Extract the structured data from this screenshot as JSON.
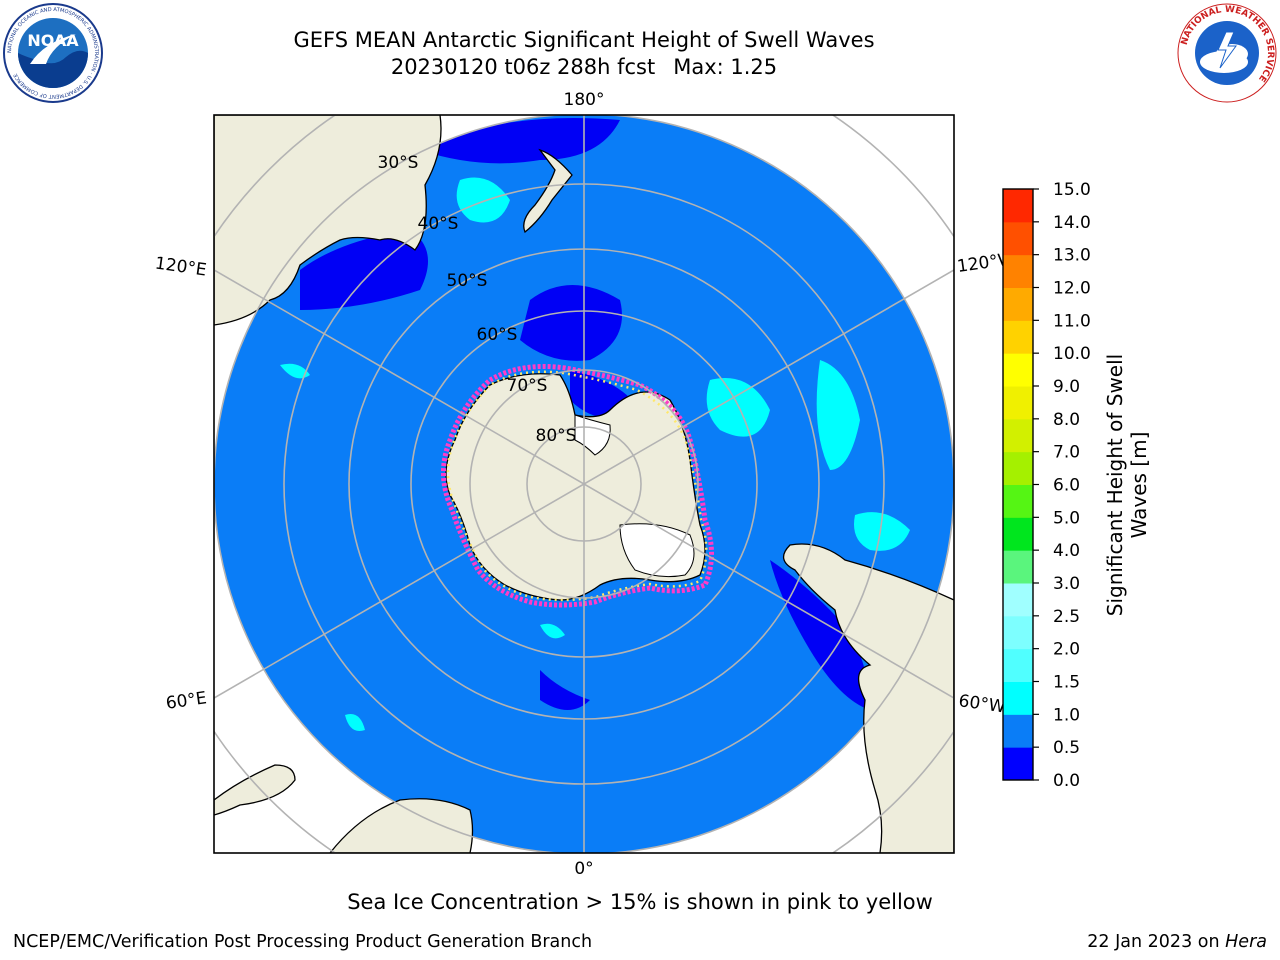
{
  "header": {
    "title_line1": "GEFS MEAN Antarctic Significant Height of Swell Waves",
    "title_line2": "20230120 t06z 288h fcst",
    "max_label": "Max: 1.25"
  },
  "logos": {
    "noaa_text": "NOAA",
    "noaa_ring": "NATIONAL OCEANIC AND ATMOSPHERIC ADMINISTRATION · U.S. DEPARTMENT OF COMMERCE",
    "nws_ring": "NATIONAL WEATHER SERVICE"
  },
  "map": {
    "projection": "south-polar-stereographic",
    "longitude_labels": {
      "top": "180°",
      "bottom": "0°",
      "left_upper": "120°E",
      "left_lower": "60°E",
      "right_upper": "120°W",
      "right_lower": "60°W"
    },
    "latitude_labels": [
      "30°S",
      "40°S",
      "50°S",
      "60°S",
      "70°S",
      "80°S"
    ],
    "colors": {
      "ocean_main": "#0a7df7",
      "ocean_low": "#0000f5",
      "ocean_mid": "#00ffff",
      "land": "#eeeddc",
      "coast": "#000000",
      "grid": "#b3b3b3",
      "sea_ice_pink": "#ff3cc8",
      "sea_ice_yellow": "#ffe86a"
    }
  },
  "colorbar": {
    "title": "Significant Height of Swell Waves [m]",
    "tick_labels": [
      "0.0",
      "0.5",
      "1.0",
      "1.5",
      "2.0",
      "2.5",
      "3.0",
      "4.0",
      "5.0",
      "6.0",
      "7.0",
      "8.0",
      "9.0",
      "10.0",
      "11.0",
      "12.0",
      "13.0",
      "14.0",
      "15.0"
    ],
    "colors": [
      "#0000ff",
      "#0a7df7",
      "#00ffff",
      "#50ffff",
      "#7dffff",
      "#a0ffff",
      "#5af57d",
      "#00e61e",
      "#55f514",
      "#a5f000",
      "#d2f000",
      "#f0f000",
      "#ffff00",
      "#ffd200",
      "#ffaa00",
      "#ff8200",
      "#ff5000",
      "#ff2800"
    ]
  },
  "caption": "Sea Ice Concentration > 15% is shown in pink to yellow",
  "footer": {
    "left": "NCEP/EMC/Verification Post Processing Product Generation Branch",
    "right_prefix": "22 Jan 2023 on ",
    "right_host": "Hera"
  }
}
